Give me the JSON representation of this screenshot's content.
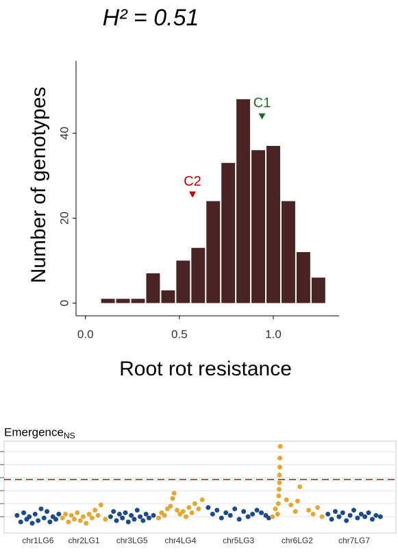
{
  "chart_data": [
    {
      "type": "histogram",
      "title": "H² = 0.51",
      "xlabel": "Root rot resistance",
      "ylabel": "Number of genotypes",
      "bins": [
        0.08,
        0.16,
        0.24,
        0.32,
        0.4,
        0.48,
        0.56,
        0.64,
        0.72,
        0.8,
        0.88,
        0.96,
        1.04,
        1.12,
        1.2,
        1.28
      ],
      "values": [
        1,
        1,
        1,
        7,
        3,
        10,
        13,
        24,
        33,
        48,
        36,
        37,
        24,
        12,
        6
      ],
      "color": "#4a2424",
      "xlim": [
        -0.05,
        1.35
      ],
      "xticks": [
        {
          "value": 0,
          "label": "0.0"
        },
        0.5,
        {
          "value": 1,
          "label": "1.0"
        }
      ],
      "ylim": [
        -3,
        57
      ],
      "yticks": [
        0,
        20,
        40
      ],
      "annotations": [
        {
          "text": "C2",
          "x": 0.57,
          "y": 25.3,
          "color": "#c00000"
        },
        {
          "text": "C1",
          "x": 0.94,
          "y": 43.7,
          "color": "#1a6b2a"
        }
      ]
    },
    {
      "type": "scatter",
      "title": "Emergence",
      "subtitle": "NS",
      "xlim": [
        -3,
        103
      ],
      "ylim": [
        -0.25,
        6.8
      ],
      "yticks": [
        1,
        2,
        3,
        4,
        5,
        6
      ],
      "grid": true,
      "threshold": {
        "value": 3.85,
        "color": "#e03030"
      },
      "series": [
        {
          "name": "chr1LG6",
          "color": "#1c4a8a",
          "x": [
            0.5,
            1.5,
            2.3,
            3.1,
            3.8,
            4.6,
            5.4,
            6.2,
            7.0,
            7.8,
            8.6,
            9.4,
            10.2,
            11.0,
            11.8
          ],
          "values": [
            1.1,
            0.6,
            1.3,
            0.8,
            1.0,
            0.5,
            1.2,
            0.7,
            1.6,
            0.9,
            1.4,
            0.6,
            1.0,
            0.8,
            1.2
          ]
        },
        {
          "name": "chr2LG1",
          "color": "#e2a832",
          "x": [
            12.8,
            13.6,
            14.4,
            15.2,
            16.0,
            16.8,
            17.6,
            18.4,
            19.2,
            20.0,
            20.8,
            21.6,
            22.4,
            23.2,
            24.4
          ],
          "values": [
            0.9,
            1.2,
            0.6,
            1.1,
            0.8,
            1.3,
            0.7,
            1.0,
            0.5,
            1.2,
            0.9,
            1.5,
            1.1,
            1.9,
            0.8
          ]
        },
        {
          "name": "chr3LG5",
          "color": "#1c4a8a",
          "x": [
            25.8,
            26.6,
            27.4,
            28.2,
            29.0,
            29.8,
            30.6,
            31.4,
            32.2,
            33.0,
            33.8,
            34.6,
            35.4,
            36.2,
            37.4
          ],
          "values": [
            1.0,
            1.4,
            0.7,
            1.2,
            0.9,
            1.3,
            0.6,
            1.1,
            0.8,
            1.5,
            1.0,
            0.7,
            1.2,
            0.9,
            1.1
          ]
        },
        {
          "name": "chr4LG4",
          "color": "#e2a832",
          "x": [
            38.8,
            39.6,
            40.4,
            41.2,
            42.0,
            42.6,
            43.0,
            43.8,
            44.6,
            45.4,
            46.2,
            47.0,
            47.8,
            48.6,
            49.6,
            50.6
          ],
          "values": [
            0.9,
            1.3,
            1.1,
            1.6,
            1.8,
            2.4,
            2.8,
            1.5,
            1.2,
            1.4,
            1.0,
            1.7,
            1.3,
            2.0,
            1.6,
            2.3
          ]
        },
        {
          "name": "chr5LG3",
          "color": "#1c4a8a",
          "x": [
            52.2,
            53.4,
            54.6,
            55.8,
            57.0,
            58.2,
            59.4,
            60.6,
            61.8,
            63.0,
            64.2,
            65.4,
            66.6,
            67.8,
            68.6
          ],
          "values": [
            1.7,
            1.2,
            1.5,
            0.9,
            1.3,
            1.1,
            1.6,
            0.8,
            1.4,
            1.0,
            1.2,
            1.5,
            1.3,
            1.1,
            0.9
          ]
        },
        {
          "name": "chr6LG2",
          "color": "#e2a832",
          "x": [
            69.6,
            70.4,
            71.0,
            71.2,
            71.3,
            71.4,
            71.5,
            71.5,
            71.6,
            71.6,
            71.7,
            73.4,
            74.6,
            75.8,
            76.4,
            77.0,
            79.4,
            80.6,
            81.8,
            83.0
          ],
          "values": [
            1.0,
            1.6,
            1.2,
            2.0,
            2.6,
            3.1,
            3.6,
            4.2,
            4.8,
            5.5,
            6.4,
            2.3,
            1.9,
            1.4,
            2.2,
            3.3,
            1.5,
            1.2,
            1.7,
            1.0
          ]
        },
        {
          "name": "chr7LG7",
          "color": "#1c4a8a",
          "x": [
            84.6,
            85.6,
            86.6,
            87.6,
            88.6,
            89.6,
            90.6,
            91.6,
            92.6,
            93.6,
            94.6,
            95.6,
            96.6,
            97.6,
            98.8
          ],
          "values": [
            1.2,
            0.8,
            1.4,
            1.0,
            1.3,
            0.7,
            1.1,
            1.5,
            0.9,
            1.2,
            1.0,
            1.3,
            0.8,
            1.1,
            1.0
          ]
        }
      ]
    }
  ]
}
